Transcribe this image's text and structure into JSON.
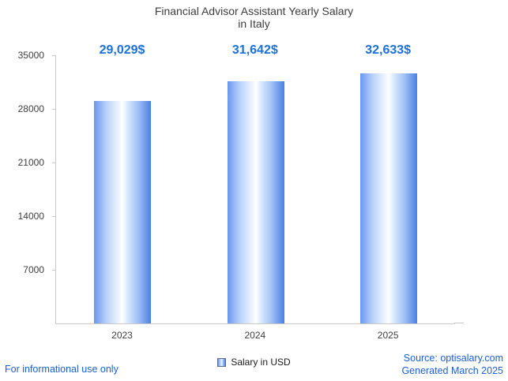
{
  "chart_data": {
    "type": "bar",
    "title": "Financial Advisor Assistant Yearly Salary in Italy",
    "title_line1": "Financial Advisor Assistant Yearly Salary",
    "title_line2": "in Italy",
    "categories": [
      "2023",
      "2024",
      "2025"
    ],
    "values": [
      29029,
      31642,
      32633
    ],
    "value_labels": [
      "29,029$",
      "31,642$",
      "32,633$"
    ],
    "series": [
      {
        "name": "Salary in USD",
        "values": [
          29029,
          31642,
          32633
        ]
      }
    ],
    "xlabel": "",
    "ylabel": "",
    "ylim": [
      0,
      35000
    ],
    "yticks": [
      7000,
      14000,
      21000,
      28000,
      35000
    ],
    "grid": false,
    "legend_position": "bottom",
    "legend_label": "Salary in USD",
    "bar_gradient_edge": "#4a7fe4",
    "bar_gradient_center": "#ffffff",
    "value_label_color": "#1b6fd8"
  },
  "footer": {
    "disclaimer": "For informational use only",
    "source": "Source: optisalary.com",
    "generated": "Generated March 2025"
  },
  "colors": {
    "accent_blue": "#1b6fd8",
    "footer_blue": "#1b5fd0",
    "title_gray": "#3c3c3c",
    "axis_gray": "#c9c9c9"
  }
}
